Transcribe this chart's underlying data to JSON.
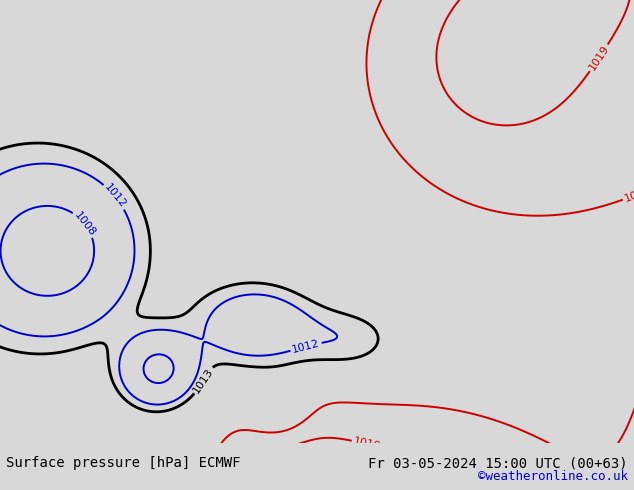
{
  "title_left": "Surface pressure [hPa] ECMWF",
  "title_right": "Fr 03-05-2024 15:00 UTC (00+63)",
  "credit": "©weatheronline.co.uk",
  "background_color": "#d8d8d8",
  "land_color": "#b8dca0",
  "sea_color": "#d8d8d8",
  "coastline_color": "#888888",
  "text_color_black": "#000000",
  "text_color_blue": "#0000cc",
  "text_color_red": "#cc0000",
  "font_size_title": 10,
  "font_size_credit": 9,
  "font_size_label": 8,
  "lon_min": -26,
  "lon_max": 26,
  "lat_min": 42,
  "lat_max": 72,
  "fig_width": 6.34,
  "fig_height": 4.9,
  "dpi": 100
}
